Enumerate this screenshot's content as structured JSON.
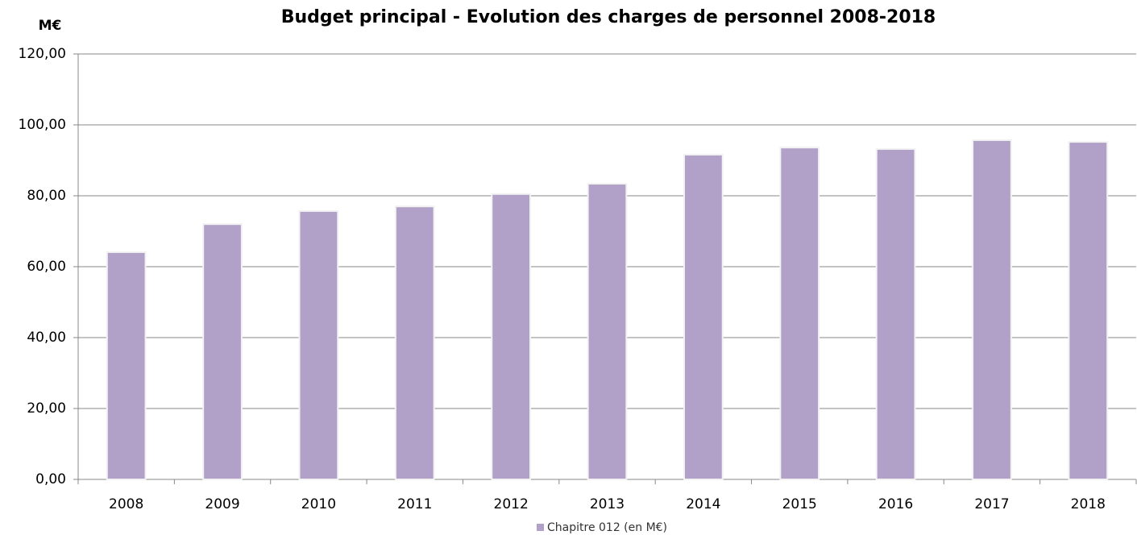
{
  "chart_data": {
    "type": "bar",
    "title": "Budget principal - Evolution des charges de personnel  2008-2018",
    "y_label": "M€",
    "categories": [
      "2008",
      "2009",
      "2010",
      "2011",
      "2012",
      "2013",
      "2014",
      "2015",
      "2016",
      "2017",
      "2018"
    ],
    "series": [
      {
        "name": "Chapitre 012 (en M€)",
        "color": "#b1a0c7",
        "values": [
          64.1,
          72.0,
          75.7,
          77.0,
          80.5,
          83.4,
          91.6,
          93.6,
          93.2,
          95.7,
          95.2
        ]
      }
    ],
    "ylim": [
      0,
      120
    ],
    "yticks": [
      {
        "value": 0,
        "label": "0,00"
      },
      {
        "value": 20,
        "label": "20,00"
      },
      {
        "value": 40,
        "label": "40,00"
      },
      {
        "value": 60,
        "label": "60,00"
      },
      {
        "value": 80,
        "label": "80,00"
      },
      {
        "value": 100,
        "label": "100,00"
      },
      {
        "value": 120,
        "label": "120,00"
      }
    ],
    "grid": true,
    "legend": "bottom"
  }
}
